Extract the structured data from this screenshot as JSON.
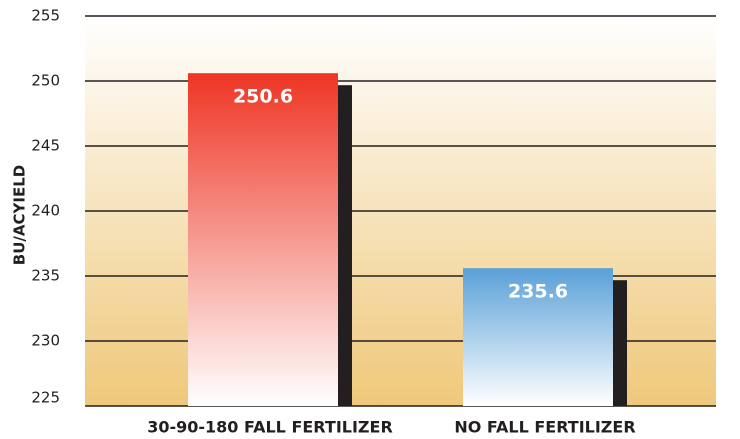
{
  "chart_data": {
    "type": "bar",
    "y_label": "BU/ACYIELD",
    "categories": [
      "30-90-180 FALL FERTILIZER",
      "NO FALL FERTILIZER"
    ],
    "values": [
      250.6,
      235.6
    ],
    "colors": [
      "#ee3524",
      "#5aa0d8"
    ],
    "ylim": [
      225,
      255
    ],
    "yticks": [
      225,
      230,
      235,
      240,
      245,
      250,
      255
    ],
    "grid": true
  }
}
